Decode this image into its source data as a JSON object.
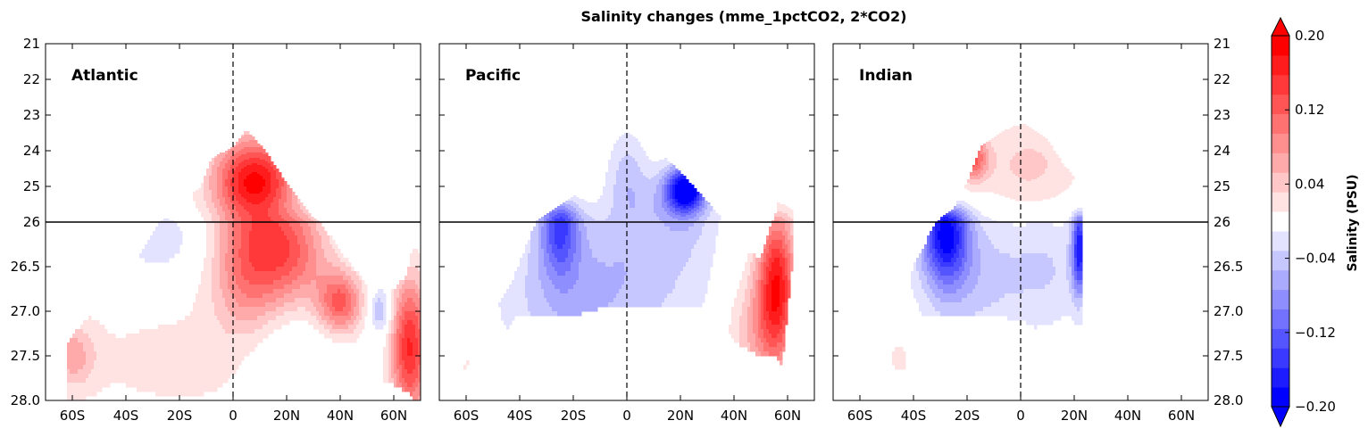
{
  "chart_data": {
    "type": "heatmap",
    "title": "Salinity changes (mme_1pctCO2, 2*CO2)",
    "panels": [
      {
        "name": "Atlantic"
      },
      {
        "name": "Pacific"
      },
      {
        "name": "Indian"
      }
    ],
    "x_ticks": [
      "60S",
      "40S",
      "20S",
      "0",
      "20N",
      "40N",
      "60N"
    ],
    "x_tick_values": [
      -60,
      -40,
      -20,
      0,
      20,
      40,
      60
    ],
    "xlim": [
      -70,
      70
    ],
    "y_ticks_upper": [
      "21",
      "22",
      "23",
      "24",
      "25",
      "26"
    ],
    "y_tick_values_upper": [
      21,
      22,
      23,
      24,
      25,
      26
    ],
    "y_ticks_lower": [
      "26.5",
      "27.0",
      "27.5",
      "28.0"
    ],
    "y_tick_values_lower": [
      26.5,
      27.0,
      27.5,
      28.0
    ],
    "ylim": [
      21,
      28
    ],
    "y_break": 26,
    "colorbar": {
      "label": "Salinity (PSU)",
      "tick_labels": [
        "0.20",
        "0.12",
        "0.04",
        "−0.04",
        "−0.12",
        "−0.20"
      ],
      "tick_values": [
        0.2,
        0.12,
        0.04,
        -0.04,
        -0.12,
        -0.2
      ],
      "levels": [
        -0.2,
        -0.18,
        -0.16,
        -0.14,
        -0.12,
        -0.1,
        -0.08,
        -0.06,
        -0.04,
        -0.02,
        0.02,
        0.04,
        0.06,
        0.08,
        0.1,
        0.12,
        0.14,
        0.16,
        0.18,
        0.2
      ],
      "colors": [
        "#0000ff",
        "#1c1cff",
        "#3939ff",
        "#5555ff",
        "#7272ff",
        "#8e8eff",
        "#aaaaff",
        "#c7c7ff",
        "#e3e3ff",
        "#ffffff",
        "#ffe3e3",
        "#ffc7c7",
        "#ffaaaa",
        "#ff8e8e",
        "#ff7272",
        "#ff5555",
        "#ff3939",
        "#ff1c1c",
        "#ff0000"
      ],
      "extend": "both",
      "over_color": "#ff0000",
      "under_color": "#0000ff"
    },
    "fields": {
      "Atlantic": {
        "blobs": [
          {
            "lat": -20,
            "y": 27.55,
            "v": 0.025,
            "sx": 40,
            "sy": 0.6
          },
          {
            "lat": 8,
            "y": 24.9,
            "v": 0.19,
            "sx": 11,
            "sy": 0.9
          },
          {
            "lat": 5,
            "y": 26.6,
            "v": 0.07,
            "sx": 9,
            "sy": 0.45
          },
          {
            "lat": 22,
            "y": 26.35,
            "v": 0.1,
            "sx": 10,
            "sy": 0.4
          },
          {
            "lat": 40,
            "y": 26.9,
            "v": 0.12,
            "sx": 6,
            "sy": 0.25
          },
          {
            "lat": 66,
            "y": 27.4,
            "v": 0.16,
            "sx": 5,
            "sy": 0.55
          },
          {
            "lat": -28,
            "y": 26.2,
            "v": -0.035,
            "sx": 12,
            "sy": 0.3
          },
          {
            "lat": 22,
            "y": 27.5,
            "v": -0.035,
            "sx": 12,
            "sy": 0.35
          },
          {
            "lat": 55,
            "y": 27.0,
            "v": -0.07,
            "sx": 3,
            "sy": 0.2
          },
          {
            "lat": -60,
            "y": 27.5,
            "v": 0.06,
            "sx": 6,
            "sy": 0.25
          }
        ],
        "mask": [
          {
            "lat": -62,
            "top": 27.35,
            "bottom": 28.0
          },
          {
            "lat": -55,
            "top": 27.1,
            "bottom": 28.0
          },
          {
            "lat": -45,
            "top": 26.85,
            "bottom": 28.0
          },
          {
            "lat": -35,
            "top": 26.4,
            "bottom": 28.0
          },
          {
            "lat": -25,
            "top": 25.85,
            "bottom": 28.0
          },
          {
            "lat": -12,
            "top": 25.0,
            "bottom": 28.0
          },
          {
            "lat": -8,
            "top": 24.2,
            "bottom": 28.0
          },
          {
            "lat": 0,
            "top": 23.9,
            "bottom": 28.0
          },
          {
            "lat": 5,
            "top": 23.4,
            "bottom": 28.0
          },
          {
            "lat": 12,
            "top": 24.0,
            "bottom": 28.0
          },
          {
            "lat": 20,
            "top": 24.9,
            "bottom": 28.0
          },
          {
            "lat": 30,
            "top": 25.9,
            "bottom": 28.0
          },
          {
            "lat": 42,
            "top": 26.4,
            "bottom": 27.9
          },
          {
            "lat": 50,
            "top": 26.7,
            "bottom": 27.8
          },
          {
            "lat": 58,
            "top": 26.8,
            "bottom": 27.8
          },
          {
            "lat": 65,
            "top": 26.6,
            "bottom": 27.9
          },
          {
            "lat": 68,
            "top": 26.1,
            "bottom": 28.0
          },
          {
            "lat": 70,
            "top": 25.8,
            "bottom": 28.0
          }
        ]
      },
      "Pacific": {
        "blobs": [
          {
            "lat": -25,
            "y": 26.0,
            "v": -0.12,
            "sx": 5,
            "sy": 0.4
          },
          {
            "lat": -20,
            "y": 26.7,
            "v": -0.05,
            "sx": 18,
            "sy": 0.7
          },
          {
            "lat": 22,
            "y": 25.1,
            "v": -0.2,
            "sx": 5,
            "sy": 0.45
          },
          {
            "lat": 15,
            "y": 25.6,
            "v": -0.05,
            "sx": 14,
            "sy": 0.8
          },
          {
            "lat": 0,
            "y": 24.6,
            "v": -0.04,
            "sx": 5,
            "sy": 0.9
          },
          {
            "lat": 56,
            "y": 26.7,
            "v": 0.17,
            "sx": 5,
            "sy": 0.6
          },
          {
            "lat": 48,
            "y": 27.2,
            "v": 0.06,
            "sx": 8,
            "sy": 0.5
          },
          {
            "lat": 0,
            "y": 26.9,
            "v": -0.02,
            "sx": 30,
            "sy": 0.5
          },
          {
            "lat": -60,
            "y": 27.5,
            "v": 0.025,
            "sx": 5,
            "sy": 0.3
          }
        ],
        "mask": [
          {
            "lat": -62,
            "top": 27.7,
            "bottom": 27.95
          },
          {
            "lat": -55,
            "top": 27.3,
            "bottom": 27.85
          },
          {
            "lat": -42,
            "top": 26.6,
            "bottom": 27.05
          },
          {
            "lat": -32,
            "top": 25.85,
            "bottom": 27.05
          },
          {
            "lat": -20,
            "top": 25.3,
            "bottom": 27.05
          },
          {
            "lat": -8,
            "top": 24.6,
            "bottom": 26.95
          },
          {
            "lat": -6,
            "top": 23.2,
            "bottom": 26.95
          },
          {
            "lat": 2,
            "top": 23.3,
            "bottom": 26.95
          },
          {
            "lat": 10,
            "top": 23.9,
            "bottom": 26.95
          },
          {
            "lat": 20,
            "top": 24.6,
            "bottom": 26.95
          },
          {
            "lat": 32,
            "top": 25.6,
            "bottom": 26.95
          },
          {
            "lat": 40,
            "top": 26.3,
            "bottom": 27.35
          },
          {
            "lat": 50,
            "top": 26.4,
            "bottom": 27.5
          },
          {
            "lat": 55,
            "top": 25.9,
            "bottom": 27.5
          },
          {
            "lat": 58,
            "top": 25.0,
            "bottom": 27.6
          },
          {
            "lat": 62,
            "top": 25.1,
            "bottom": 26.4
          }
        ]
      },
      "Indian": {
        "blobs": [
          {
            "lat": -28,
            "y": 26.1,
            "v": -0.17,
            "sx": 6,
            "sy": 0.4
          },
          {
            "lat": -20,
            "y": 26.6,
            "v": -0.05,
            "sx": 14,
            "sy": 0.55
          },
          {
            "lat": 22,
            "y": 26.3,
            "v": -0.16,
            "sx": 2,
            "sy": 0.35
          },
          {
            "lat": 10,
            "y": 26.5,
            "v": -0.04,
            "sx": 12,
            "sy": 0.5
          },
          {
            "lat": -18,
            "y": 24.2,
            "v": 0.12,
            "sx": 4,
            "sy": 0.45
          },
          {
            "lat": 3,
            "y": 24.4,
            "v": 0.045,
            "sx": 14,
            "sy": 0.9
          },
          {
            "lat": -45,
            "y": 27.5,
            "v": 0.025,
            "sx": 6,
            "sy": 0.3
          }
        ],
        "mask": [
          {
            "lat": -52,
            "top": 27.6,
            "bottom": 27.95
          },
          {
            "lat": -44,
            "top": 27.0,
            "bottom": 27.9
          },
          {
            "lat": -40,
            "top": 26.5,
            "bottom": 27.1
          },
          {
            "lat": -35,
            "top": 26.2,
            "bottom": 27.05
          },
          {
            "lat": -25,
            "top": 25.6,
            "bottom": 27.05
          },
          {
            "lat": -20,
            "top": 24.9,
            "bottom": 27.05
          },
          {
            "lat": -15,
            "top": 23.9,
            "bottom": 27.05
          },
          {
            "lat": -10,
            "top": 23.6,
            "bottom": 27.05
          },
          {
            "lat": 0,
            "top": 23.2,
            "bottom": 27.1
          },
          {
            "lat": 10,
            "top": 23.7,
            "bottom": 27.25
          },
          {
            "lat": 16,
            "top": 24.4,
            "bottom": 27.3
          },
          {
            "lat": 22,
            "top": 24.9,
            "bottom": 27.5
          },
          {
            "lat": 23,
            "top": 25.0,
            "bottom": 27.5
          }
        ]
      }
    }
  }
}
